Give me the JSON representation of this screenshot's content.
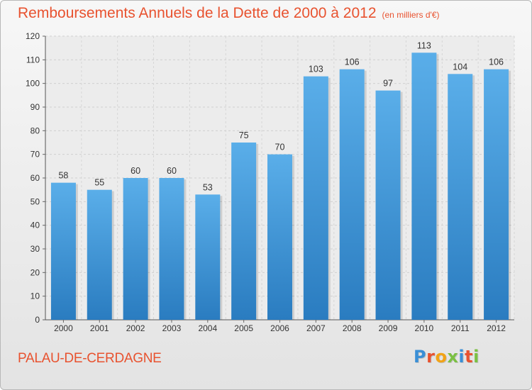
{
  "title": "Remboursements Annuels de la Dette de 2000 à 2012",
  "unit": "(en milliers d'€)",
  "location": "PALAU-DE-CERDAGNE",
  "brand": {
    "letters": [
      "P",
      "r",
      "o",
      "x",
      "i",
      "t",
      "i"
    ],
    "colors": [
      "#3a8fd6",
      "#e8522f",
      "#f2a316",
      "#7bc043",
      "#3a8fd6",
      "#e8522f",
      "#7bc043"
    ]
  },
  "chart_data": {
    "type": "bar",
    "categories": [
      "2000",
      "2001",
      "2002",
      "2003",
      "2004",
      "2005",
      "2006",
      "2007",
      "2008",
      "2009",
      "2010",
      "2011",
      "2012"
    ],
    "values": [
      58,
      55,
      60,
      60,
      53,
      75,
      70,
      103,
      106,
      97,
      113,
      104,
      106
    ],
    "ylim": [
      0,
      120
    ],
    "yticks": [
      0,
      10,
      20,
      30,
      40,
      50,
      60,
      70,
      80,
      90,
      100,
      110,
      120
    ],
    "grid": true,
    "bar_color": "#4aa3e6",
    "bar_color_dark": "#2a7cc0"
  }
}
